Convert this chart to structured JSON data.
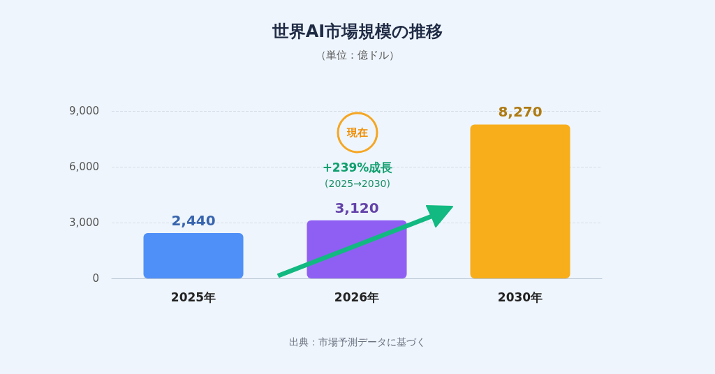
{
  "chart_data": {
    "type": "bar",
    "title": "世界AI市場規模の推移",
    "subtitle": "（単位：億ドル）",
    "categories": [
      "2025年",
      "2026年",
      "2030年"
    ],
    "values": [
      2440,
      3120,
      8270
    ],
    "value_labels": [
      "2,440",
      "3,120",
      "8,270"
    ],
    "colors": [
      "#4f8ff8",
      "#8f5ff3",
      "#f8ae1a"
    ],
    "ylim": [
      0,
      9000
    ],
    "yticks": [
      0,
      {
        "value": 3000,
        "label": "3,000"
      },
      {
        "value": 6000,
        "label": "6,000"
      },
      {
        "value": 9000,
        "label": "9,000"
      }
    ],
    "grid": "y",
    "annotations": [
      "現在",
      "+239%成長",
      "(2025→2030)",
      "出典：市場予測データに基づく"
    ]
  }
}
